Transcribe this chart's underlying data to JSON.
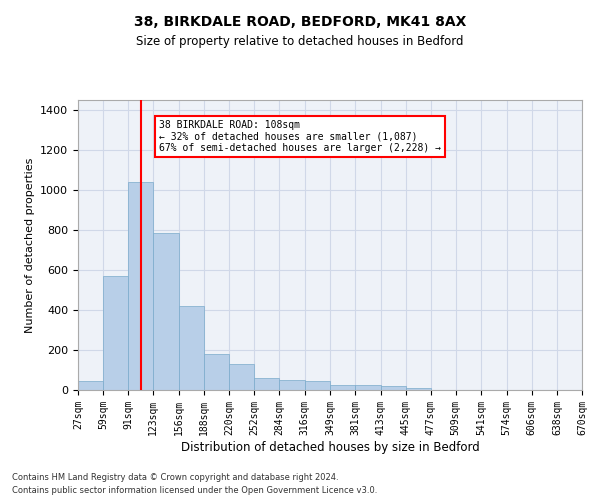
{
  "title1": "38, BIRKDALE ROAD, BEDFORD, MK41 8AX",
  "title2": "Size of property relative to detached houses in Bedford",
  "xlabel": "Distribution of detached houses by size in Bedford",
  "ylabel": "Number of detached properties",
  "annotation_title": "38 BIRKDALE ROAD: 108sqm",
  "annotation_line1": "← 32% of detached houses are smaller (1,087)",
  "annotation_line2": "67% of semi-detached houses are larger (2,228) →",
  "footer1": "Contains HM Land Registry data © Crown copyright and database right 2024.",
  "footer2": "Contains public sector information licensed under the Open Government Licence v3.0.",
  "bar_color": "#b8cfe8",
  "bar_edge_color": "#7aaacb",
  "grid_color": "#d0d8e8",
  "background_color": "#eef2f8",
  "redline_x": 108,
  "bin_edges": [
    27,
    59,
    91,
    123,
    156,
    188,
    220,
    252,
    284,
    316,
    349,
    381,
    413,
    445,
    477,
    509,
    541,
    574,
    606,
    638,
    670
  ],
  "bar_values": [
    47,
    572,
    1040,
    783,
    420,
    178,
    128,
    62,
    50,
    43,
    27,
    27,
    19,
    11,
    0,
    0,
    0,
    0,
    0,
    0
  ],
  "ylim": [
    0,
    1450
  ],
  "yticks": [
    0,
    200,
    400,
    600,
    800,
    1000,
    1200,
    1400
  ],
  "xtick_labels": [
    "27sqm",
    "59sqm",
    "91sqm",
    "123sqm",
    "156sqm",
    "188sqm",
    "220sqm",
    "252sqm",
    "284sqm",
    "316sqm",
    "349sqm",
    "381sqm",
    "413sqm",
    "445sqm",
    "477sqm",
    "509sqm",
    "541sqm",
    "574sqm",
    "606sqm",
    "638sqm",
    "670sqm"
  ]
}
